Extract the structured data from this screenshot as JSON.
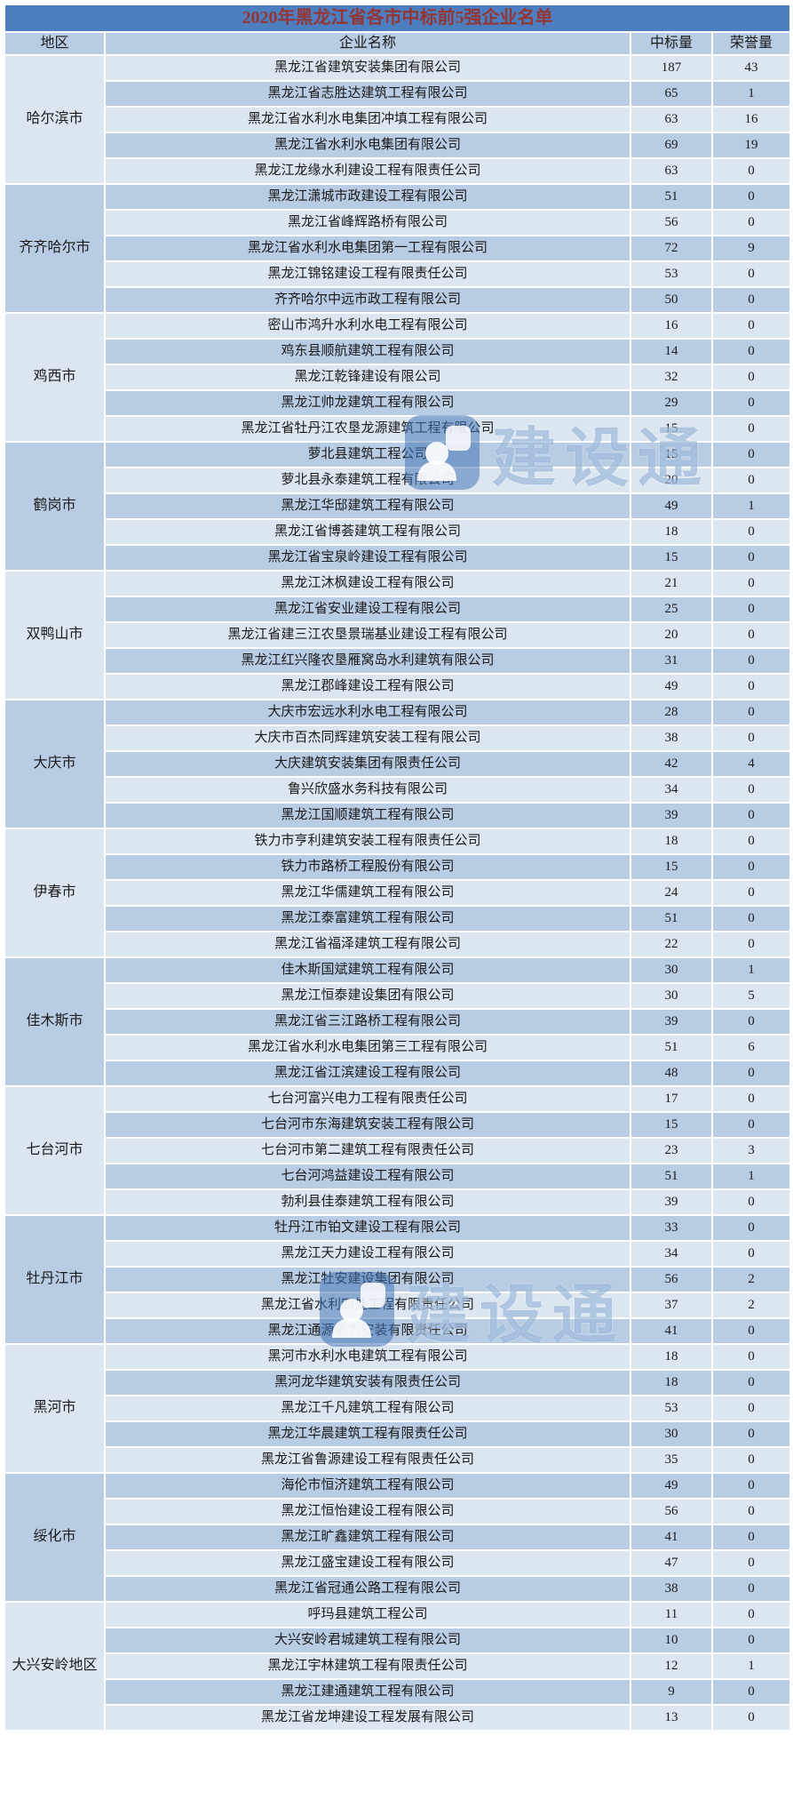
{
  "title": "2020年黑龙江省各市中标前5强企业名单",
  "columns": {
    "region": "地区",
    "company": "企业名称",
    "bids": "中标量",
    "honors": "荣誉量"
  },
  "watermark": {
    "text": "建设通",
    "logo_icon": "builder-badge-icon",
    "color": "#4f81bd"
  },
  "colors": {
    "title_bg": "#4d7ebf",
    "title_text": "#943634",
    "header_bg": "#b8cce4",
    "row_light": "#dce6f1",
    "row_dark": "#b8cce4",
    "grid": "#ffffff"
  },
  "regions": [
    {
      "name": "哈尔滨市",
      "companies": [
        {
          "name": "黑龙江省建筑安装集团有限公司",
          "bids": 187,
          "honors": 43
        },
        {
          "name": "黑龙江省志胜达建筑工程有限公司",
          "bids": 65,
          "honors": 1
        },
        {
          "name": "黑龙江省水利水电集团冲填工程有限公司",
          "bids": 63,
          "honors": 16
        },
        {
          "name": "黑龙江省水利水电集团有限公司",
          "bids": 69,
          "honors": 19
        },
        {
          "name": "黑龙江龙缘水利建设工程有限责任公司",
          "bids": 63,
          "honors": 0
        }
      ]
    },
    {
      "name": "齐齐哈尔市",
      "companies": [
        {
          "name": "黑龙江潇城市政建设工程有限公司",
          "bids": 51,
          "honors": 0
        },
        {
          "name": "黑龙江省峰辉路桥有限公司",
          "bids": 56,
          "honors": 0
        },
        {
          "name": "黑龙江省水利水电集团第一工程有限公司",
          "bids": 72,
          "honors": 9
        },
        {
          "name": "黑龙江锦铭建设工程有限责任公司",
          "bids": 53,
          "honors": 0
        },
        {
          "name": "齐齐哈尔中远市政工程有限公司",
          "bids": 50,
          "honors": 0
        }
      ]
    },
    {
      "name": "鸡西市",
      "companies": [
        {
          "name": "密山市鸿升水利水电工程有限公司",
          "bids": 16,
          "honors": 0
        },
        {
          "name": "鸡东县顺航建筑工程有限公司",
          "bids": 14,
          "honors": 0
        },
        {
          "name": "黑龙江乾锋建设有限公司",
          "bids": 32,
          "honors": 0
        },
        {
          "name": "黑龙江帅龙建筑工程有限公司",
          "bids": 29,
          "honors": 0
        },
        {
          "name": "黑龙江省牡丹江农垦龙源建筑工程有限公司",
          "bids": 15,
          "honors": 0
        }
      ]
    },
    {
      "name": "鹤岗市",
      "companies": [
        {
          "name": "萝北县建筑工程公司",
          "bids": 15,
          "honors": 0
        },
        {
          "name": "萝北县永泰建筑工程有限公司",
          "bids": 20,
          "honors": 0
        },
        {
          "name": "黑龙江华邸建筑工程有限公司",
          "bids": 49,
          "honors": 1
        },
        {
          "name": "黑龙江省博荟建筑工程有限公司",
          "bids": 18,
          "honors": 0
        },
        {
          "name": "黑龙江省宝泉岭建设工程有限公司",
          "bids": 15,
          "honors": 0
        }
      ]
    },
    {
      "name": "双鸭山市",
      "companies": [
        {
          "name": "黑龙江沐枫建设工程有限公司",
          "bids": 21,
          "honors": 0
        },
        {
          "name": "黑龙江省安业建设工程有限公司",
          "bids": 25,
          "honors": 0
        },
        {
          "name": "黑龙江省建三江农垦景瑞基业建设工程有限公司",
          "bids": 20,
          "honors": 0
        },
        {
          "name": "黑龙江红兴隆农垦雁窝岛水利建筑有限公司",
          "bids": 31,
          "honors": 0
        },
        {
          "name": "黑龙江郡峰建设工程有限公司",
          "bids": 49,
          "honors": 0
        }
      ]
    },
    {
      "name": "大庆市",
      "companies": [
        {
          "name": "大庆市宏远水利水电工程有限公司",
          "bids": 28,
          "honors": 0
        },
        {
          "name": "大庆市百杰同辉建筑安装工程有限公司",
          "bids": 38,
          "honors": 0
        },
        {
          "name": "大庆建筑安装集团有限责任公司",
          "bids": 42,
          "honors": 4
        },
        {
          "name": "鲁兴欣盛水务科技有限公司",
          "bids": 34,
          "honors": 0
        },
        {
          "name": "黑龙江国顺建筑工程有限公司",
          "bids": 39,
          "honors": 0
        }
      ]
    },
    {
      "name": "伊春市",
      "companies": [
        {
          "name": "铁力市亨利建筑安装工程有限责任公司",
          "bids": 18,
          "honors": 0
        },
        {
          "name": "铁力市路桥工程股份有限公司",
          "bids": 15,
          "honors": 0
        },
        {
          "name": "黑龙江华儒建筑工程有限公司",
          "bids": 24,
          "honors": 0
        },
        {
          "name": "黑龙江泰富建筑工程有限公司",
          "bids": 51,
          "honors": 0
        },
        {
          "name": "黑龙江省福泽建筑工程有限公司",
          "bids": 22,
          "honors": 0
        }
      ]
    },
    {
      "name": "佳木斯市",
      "companies": [
        {
          "name": "佳木斯国斌建筑工程有限公司",
          "bids": 30,
          "honors": 1
        },
        {
          "name": "黑龙江恒泰建设集团有限公司",
          "bids": 30,
          "honors": 5
        },
        {
          "name": "黑龙江省三江路桥工程有限公司",
          "bids": 39,
          "honors": 0
        },
        {
          "name": "黑龙江省水利水电集团第三工程有限公司",
          "bids": 51,
          "honors": 6
        },
        {
          "name": "黑龙江省江滨建设工程有限公司",
          "bids": 48,
          "honors": 0
        }
      ]
    },
    {
      "name": "七台河市",
      "companies": [
        {
          "name": "七台河富兴电力工程有限责任公司",
          "bids": 17,
          "honors": 0
        },
        {
          "name": "七台河市东海建筑安装工程有限公司",
          "bids": 15,
          "honors": 0
        },
        {
          "name": "七台河市第二建筑工程有限责任公司",
          "bids": 23,
          "honors": 3
        },
        {
          "name": "七台河鸿益建设工程有限公司",
          "bids": 51,
          "honors": 1
        },
        {
          "name": "勃利县佳泰建筑工程有限公司",
          "bids": 39,
          "honors": 0
        }
      ]
    },
    {
      "name": "牡丹江市",
      "companies": [
        {
          "name": "牡丹江市铂文建设工程有限公司",
          "bids": 33,
          "honors": 0
        },
        {
          "name": "黑龙江天力建设工程有限公司",
          "bids": 34,
          "honors": 0
        },
        {
          "name": "黑龙江牡安建设集团有限公司",
          "bids": 56,
          "honors": 2
        },
        {
          "name": "黑龙江省水利四处工程有限责任公司",
          "bids": 37,
          "honors": 2
        },
        {
          "name": "黑龙江通源电力安装有限责任公司",
          "bids": 41,
          "honors": 0
        }
      ]
    },
    {
      "name": "黑河市",
      "companies": [
        {
          "name": "黑河市水利水电建筑工程有限公司",
          "bids": 18,
          "honors": 0
        },
        {
          "name": "黑河龙华建筑安装有限责任公司",
          "bids": 18,
          "honors": 0
        },
        {
          "name": "黑龙江千凡建筑工程有限公司",
          "bids": 53,
          "honors": 0
        },
        {
          "name": "黑龙江华晨建筑工程有限责任公司",
          "bids": 30,
          "honors": 0
        },
        {
          "name": "黑龙江省鲁源建设工程有限责任公司",
          "bids": 35,
          "honors": 0
        }
      ]
    },
    {
      "name": "绥化市",
      "companies": [
        {
          "name": "海伦市恒济建筑工程有限公司",
          "bids": 49,
          "honors": 0
        },
        {
          "name": "黑龙江恒怡建设工程有限公司",
          "bids": 56,
          "honors": 0
        },
        {
          "name": "黑龙江旷鑫建筑工程有限公司",
          "bids": 41,
          "honors": 0
        },
        {
          "name": "黑龙江盛宝建设工程有限公司",
          "bids": 47,
          "honors": 0
        },
        {
          "name": "黑龙江省冠通公路工程有限公司",
          "bids": 38,
          "honors": 0
        }
      ]
    },
    {
      "name": "大兴安岭地区",
      "companies": [
        {
          "name": "呼玛县建筑工程公司",
          "bids": 11,
          "honors": 0
        },
        {
          "name": "大兴安岭君城建筑工程有限公司",
          "bids": 10,
          "honors": 0
        },
        {
          "name": "黑龙江宇林建筑工程有限责任公司",
          "bids": 12,
          "honors": 1
        },
        {
          "name": "黑龙江建通建筑工程有限公司",
          "bids": 9,
          "honors": 0
        },
        {
          "name": "黑龙江省龙坤建设工程发展有限公司",
          "bids": 13,
          "honors": 0
        }
      ]
    }
  ]
}
